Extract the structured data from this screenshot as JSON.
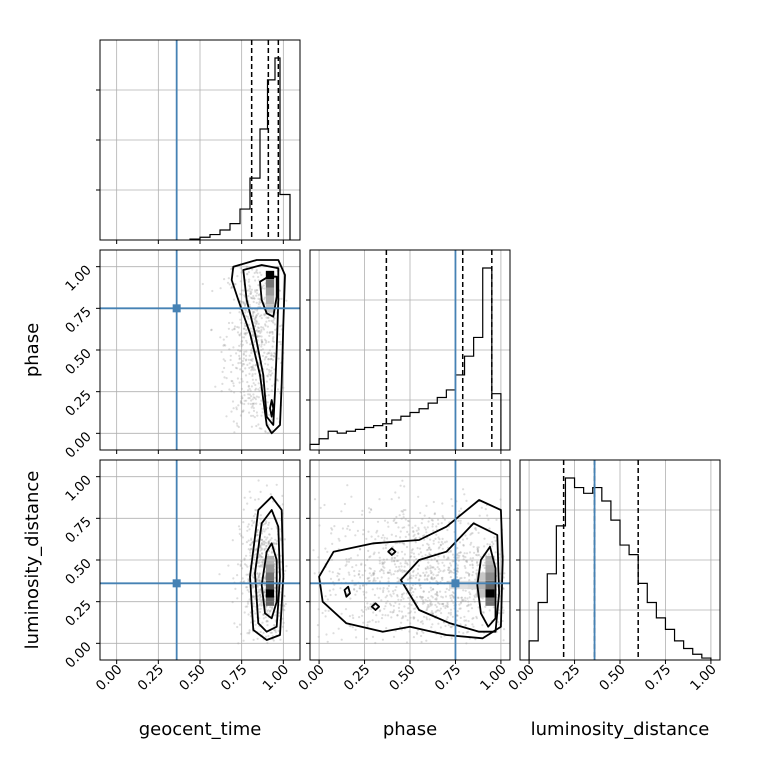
{
  "chart_data": {
    "type": "corner",
    "parameters": [
      "geocent_time",
      "phase",
      "luminosity_distance"
    ],
    "labels": {
      "geocent_time": "geocent_time",
      "phase": "phase",
      "luminosity_distance": "luminosity_distance"
    },
    "tick_labels": [
      "0.00",
      "0.25",
      "0.50",
      "0.75",
      "1.00"
    ],
    "truths": {
      "geocent_time": 0.36,
      "phase": 0.75,
      "luminosity_distance": 0.36
    },
    "quantiles": {
      "geocent_time": [
        0.81,
        0.91,
        0.97
      ],
      "phase": [
        0.37,
        0.79,
        0.95
      ],
      "luminosity_distance": [
        0.19,
        0.36,
        0.6
      ]
    },
    "histograms": {
      "geocent_time": {
        "xlim": [
          -0.1,
          1.1
        ],
        "edges": [
          0.44,
          0.5,
          0.56,
          0.62,
          0.68,
          0.74,
          0.8,
          0.86,
          0.905,
          0.95,
          0.98,
          1.04
        ],
        "counts": [
          0.005,
          0.015,
          0.03,
          0.055,
          0.09,
          0.17,
          0.34,
          0.61,
          0.88,
          1.0,
          0.25
        ]
      },
      "phase": {
        "xlim": [
          -0.05,
          1.05
        ],
        "edges": [
          -0.05,
          0.0,
          0.05,
          0.1,
          0.15,
          0.2,
          0.25,
          0.3,
          0.35,
          0.4,
          0.45,
          0.5,
          0.55,
          0.6,
          0.65,
          0.7,
          0.75,
          0.8,
          0.85,
          0.9,
          0.95,
          1.0
        ],
        "counts": [
          0.03,
          0.06,
          0.1,
          0.09,
          0.1,
          0.11,
          0.12,
          0.13,
          0.14,
          0.16,
          0.18,
          0.2,
          0.22,
          0.25,
          0.28,
          0.32,
          0.4,
          0.5,
          0.6,
          0.97,
          0.3
        ]
      },
      "luminosity_distance": {
        "xlim": [
          -0.05,
          1.05
        ],
        "edges": [
          0.0,
          0.05,
          0.1,
          0.15,
          0.2,
          0.25,
          0.3,
          0.35,
          0.4,
          0.45,
          0.5,
          0.55,
          0.6,
          0.65,
          0.7,
          0.75,
          0.8,
          0.85,
          0.9,
          0.95,
          1.0
        ],
        "counts": [
          0.1,
          0.3,
          0.45,
          0.7,
          0.95,
          0.9,
          0.87,
          0.9,
          0.83,
          0.73,
          0.6,
          0.55,
          0.4,
          0.3,
          0.22,
          0.16,
          0.1,
          0.06,
          0.03,
          0.01
        ]
      }
    },
    "panels_2d": [
      {
        "x": "geocent_time",
        "y": "phase",
        "xlim": [
          -0.1,
          1.1
        ],
        "ylim": [
          -0.1,
          1.1
        ],
        "scatter_cloud": {
          "xc": 0.83,
          "yc": 0.55,
          "sx": 0.09,
          "sy": 0.3,
          "n": 700,
          "xmin": 0.4,
          "xmax": 1.02,
          "ymin": 0.0,
          "ymax": 1.0
        },
        "pixels": [
          {
            "x": 0.92,
            "y": 0.95,
            "v": 1.0
          },
          {
            "x": 0.92,
            "y": 0.9,
            "v": 0.55
          },
          {
            "x": 0.92,
            "y": 0.85,
            "v": 0.4
          },
          {
            "x": 0.92,
            "y": 0.8,
            "v": 0.3
          },
          {
            "x": 0.92,
            "y": 0.75,
            "v": 0.22
          }
        ],
        "contours": [
          [
            [
              0.7,
              1.0
            ],
            [
              0.84,
              1.04
            ],
            [
              0.97,
              1.04
            ],
            [
              1.01,
              0.95
            ],
            [
              1.0,
              0.65
            ],
            [
              0.99,
              0.3
            ],
            [
              0.98,
              0.05
            ],
            [
              0.93,
              0.0
            ],
            [
              0.9,
              0.05
            ],
            [
              0.86,
              0.35
            ],
            [
              0.8,
              0.6
            ],
            [
              0.73,
              0.8
            ],
            [
              0.69,
              0.92
            ],
            [
              0.7,
              1.0
            ]
          ],
          [
            [
              0.76,
              0.98
            ],
            [
              0.87,
              1.01
            ],
            [
              0.97,
              0.99
            ],
            [
              0.97,
              0.8
            ],
            [
              0.96,
              0.5
            ],
            [
              0.95,
              0.25
            ],
            [
              0.94,
              0.05
            ],
            [
              0.9,
              0.1
            ],
            [
              0.88,
              0.35
            ],
            [
              0.83,
              0.6
            ],
            [
              0.78,
              0.8
            ],
            [
              0.76,
              0.98
            ]
          ],
          [
            [
              0.86,
              0.91
            ],
            [
              0.91,
              0.94
            ],
            [
              0.96,
              0.94
            ],
            [
              0.96,
              0.82
            ],
            [
              0.94,
              0.7
            ],
            [
              0.9,
              0.72
            ],
            [
              0.87,
              0.8
            ],
            [
              0.86,
              0.91
            ]
          ],
          [
            [
              0.92,
              0.15
            ],
            [
              0.93,
              0.1
            ],
            [
              0.94,
              0.15
            ],
            [
              0.93,
              0.2
            ],
            [
              0.92,
              0.15
            ]
          ]
        ],
        "truth": {
          "x": 0.36,
          "y": 0.75
        }
      },
      {
        "x": "geocent_time",
        "y": "luminosity_distance",
        "xlim": [
          -0.1,
          1.1
        ],
        "ylim": [
          -0.1,
          1.1
        ],
        "scatter_cloud": {
          "xc": 0.88,
          "yc": 0.38,
          "sx": 0.07,
          "sy": 0.22,
          "n": 650,
          "xmin": 0.6,
          "xmax": 1.02,
          "ymin": 0.0,
          "ymax": 1.0
        },
        "pixels": [
          {
            "x": 0.92,
            "y": 0.3,
            "v": 1.0
          },
          {
            "x": 0.92,
            "y": 0.35,
            "v": 0.7
          },
          {
            "x": 0.92,
            "y": 0.4,
            "v": 0.55
          },
          {
            "x": 0.92,
            "y": 0.25,
            "v": 0.6
          },
          {
            "x": 0.92,
            "y": 0.45,
            "v": 0.4
          },
          {
            "x": 0.92,
            "y": 0.5,
            "v": 0.3
          }
        ],
        "contours": [
          [
            [
              0.8,
              0.4
            ],
            [
              0.85,
              0.8
            ],
            [
              0.93,
              0.88
            ],
            [
              0.99,
              0.8
            ],
            [
              1.0,
              0.4
            ],
            [
              0.98,
              0.05
            ],
            [
              0.9,
              0.02
            ],
            [
              0.82,
              0.08
            ],
            [
              0.8,
              0.4
            ]
          ],
          [
            [
              0.83,
              0.42
            ],
            [
              0.87,
              0.72
            ],
            [
              0.93,
              0.8
            ],
            [
              0.97,
              0.7
            ],
            [
              0.98,
              0.4
            ],
            [
              0.96,
              0.1
            ],
            [
              0.9,
              0.07
            ],
            [
              0.85,
              0.12
            ],
            [
              0.83,
              0.42
            ]
          ],
          [
            [
              0.87,
              0.35
            ],
            [
              0.9,
              0.55
            ],
            [
              0.93,
              0.6
            ],
            [
              0.96,
              0.5
            ],
            [
              0.96,
              0.25
            ],
            [
              0.93,
              0.15
            ],
            [
              0.89,
              0.18
            ],
            [
              0.87,
              0.35
            ]
          ]
        ],
        "truth": {
          "x": 0.36,
          "y": 0.36
        }
      },
      {
        "x": "phase",
        "y": "luminosity_distance",
        "xlim": [
          -0.05,
          1.05
        ],
        "ylim": [
          -0.1,
          1.1
        ],
        "scatter_cloud": {
          "xc": 0.6,
          "yc": 0.4,
          "sx": 0.3,
          "sy": 0.22,
          "n": 1300,
          "xmin": -0.05,
          "xmax": 1.02,
          "ymin": 0.0,
          "ymax": 1.0
        },
        "pixels": [
          {
            "x": 0.94,
            "y": 0.3,
            "v": 1.0
          },
          {
            "x": 0.94,
            "y": 0.35,
            "v": 0.6
          },
          {
            "x": 0.94,
            "y": 0.25,
            "v": 0.55
          },
          {
            "x": 0.94,
            "y": 0.4,
            "v": 0.45
          },
          {
            "x": 0.94,
            "y": 0.45,
            "v": 0.35
          },
          {
            "x": 0.94,
            "y": 0.5,
            "v": 0.3
          },
          {
            "x": 0.89,
            "y": 0.35,
            "v": 0.3
          },
          {
            "x": 0.89,
            "y": 0.3,
            "v": 0.25
          },
          {
            "x": 0.89,
            "y": 0.4,
            "v": 0.22
          },
          {
            "x": 0.84,
            "y": 0.35,
            "v": 0.15
          },
          {
            "x": 0.79,
            "y": 0.35,
            "v": 0.12
          },
          {
            "x": 0.74,
            "y": 0.35,
            "v": 0.12
          }
        ],
        "contours": [
          [
            [
              0.0,
              0.4
            ],
            [
              0.08,
              0.55
            ],
            [
              0.3,
              0.6
            ],
            [
              0.55,
              0.62
            ],
            [
              0.7,
              0.7
            ],
            [
              0.88,
              0.86
            ],
            [
              1.0,
              0.8
            ],
            [
              1.01,
              0.5
            ],
            [
              1.0,
              0.1
            ],
            [
              0.9,
              0.03
            ],
            [
              0.7,
              0.05
            ],
            [
              0.5,
              0.1
            ],
            [
              0.35,
              0.07
            ],
            [
              0.15,
              0.12
            ],
            [
              0.02,
              0.25
            ],
            [
              0.0,
              0.4
            ]
          ],
          [
            [
              0.45,
              0.38
            ],
            [
              0.55,
              0.5
            ],
            [
              0.7,
              0.55
            ],
            [
              0.85,
              0.72
            ],
            [
              0.98,
              0.65
            ],
            [
              0.99,
              0.3
            ],
            [
              0.97,
              0.07
            ],
            [
              0.88,
              0.07
            ],
            [
              0.72,
              0.12
            ],
            [
              0.55,
              0.2
            ],
            [
              0.45,
              0.38
            ]
          ],
          [
            [
              0.87,
              0.35
            ],
            [
              0.89,
              0.5
            ],
            [
              0.94,
              0.58
            ],
            [
              0.97,
              0.45
            ],
            [
              0.97,
              0.15
            ],
            [
              0.93,
              0.1
            ],
            [
              0.89,
              0.18
            ],
            [
              0.87,
              0.35
            ]
          ],
          [
            [
              0.38,
              0.55
            ],
            [
              0.4,
              0.57
            ],
            [
              0.42,
              0.55
            ],
            [
              0.4,
              0.53
            ],
            [
              0.38,
              0.55
            ]
          ],
          [
            [
              0.14,
              0.32
            ],
            [
              0.16,
              0.34
            ],
            [
              0.17,
              0.3
            ],
            [
              0.15,
              0.28
            ],
            [
              0.14,
              0.32
            ]
          ],
          [
            [
              0.29,
              0.22
            ],
            [
              0.31,
              0.24
            ],
            [
              0.33,
              0.22
            ],
            [
              0.31,
              0.2
            ],
            [
              0.29,
              0.22
            ]
          ]
        ],
        "truth": {
          "x": 0.75,
          "y": 0.36
        }
      }
    ],
    "colors": {
      "truth": "#4682b4",
      "contour": "#000000",
      "scatter": "#9e9e9e",
      "grid": "#b0b0b0"
    },
    "grid": true
  }
}
